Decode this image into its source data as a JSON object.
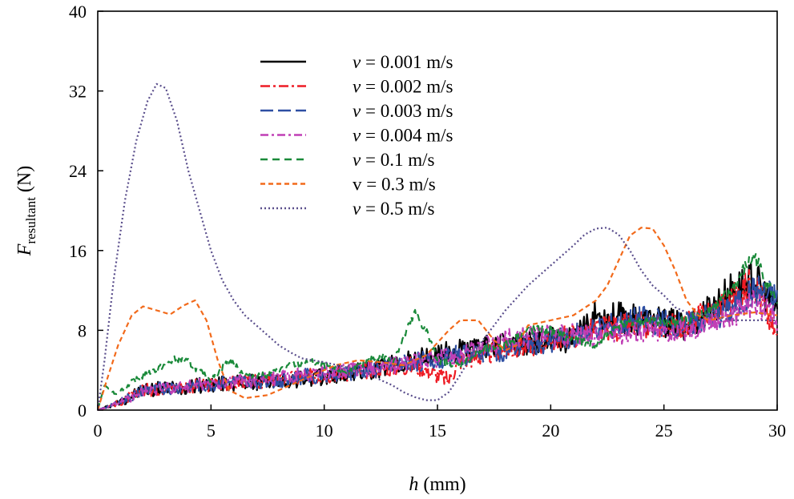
{
  "chart_data": {
    "type": "line",
    "xlabel": {
      "var": "h",
      "unit": "(mm)"
    },
    "ylabel": {
      "var": "F",
      "sub": "resultant",
      "unit": "(N)"
    },
    "xlim": [
      0,
      30
    ],
    "ylim": [
      0,
      40
    ],
    "xticks": [
      0,
      5,
      10,
      15,
      20,
      25,
      30
    ],
    "yticks": [
      0,
      8,
      16,
      24,
      32,
      40
    ],
    "grid": false,
    "legend_position": "top-center",
    "series": [
      {
        "name": "v = 0.001 m/s",
        "var": "v",
        "label_rest": " = 0.001 m/s",
        "italic": true,
        "color": "#000000",
        "dash": "",
        "width": 2.2,
        "noise": 1.2,
        "points": [
          [
            0,
            0
          ],
          [
            1,
            0.8
          ],
          [
            2,
            2
          ],
          [
            4,
            2.4
          ],
          [
            6,
            2.7
          ],
          [
            8,
            2.9
          ],
          [
            10,
            3.3
          ],
          [
            12,
            4
          ],
          [
            14,
            5
          ],
          [
            16,
            6
          ],
          [
            18,
            6.5
          ],
          [
            20,
            7
          ],
          [
            21,
            7
          ],
          [
            22,
            9.5
          ],
          [
            24,
            9
          ],
          [
            26,
            8.5
          ],
          [
            27,
            10
          ],
          [
            28,
            12
          ],
          [
            29,
            13
          ],
          [
            30,
            10
          ]
        ]
      },
      {
        "name": "v = 0.002 m/s",
        "var": "v",
        "label_rest": " = 0.002 m/s",
        "italic": true,
        "color": "#ee1c25",
        "dash": "12,4,3,4",
        "width": 2.2,
        "noise": 1.1,
        "points": [
          [
            0,
            0
          ],
          [
            1,
            0.8
          ],
          [
            2,
            2
          ],
          [
            4,
            2.4
          ],
          [
            6,
            2.7
          ],
          [
            8,
            3
          ],
          [
            10,
            3.5
          ],
          [
            12,
            4
          ],
          [
            14,
            4.5
          ],
          [
            15.5,
            3
          ],
          [
            16,
            5
          ],
          [
            18,
            6
          ],
          [
            20,
            7
          ],
          [
            22,
            8
          ],
          [
            24,
            8.5
          ],
          [
            26,
            8.5
          ],
          [
            28,
            11
          ],
          [
            29,
            13
          ],
          [
            30,
            7
          ]
        ]
      },
      {
        "name": "v = 0.003 m/s",
        "var": "v",
        "label_rest": " = 0.003 m/s",
        "italic": true,
        "color": "#2e4fa3",
        "dash": "16,6",
        "width": 2.2,
        "noise": 1.1,
        "points": [
          [
            0,
            0
          ],
          [
            1,
            0.8
          ],
          [
            2,
            2
          ],
          [
            4,
            2.4
          ],
          [
            6,
            2.8
          ],
          [
            8,
            3
          ],
          [
            10,
            3.6
          ],
          [
            12,
            4
          ],
          [
            14,
            4.8
          ],
          [
            16,
            5.5
          ],
          [
            18,
            6
          ],
          [
            20,
            7
          ],
          [
            22,
            8
          ],
          [
            24,
            9
          ],
          [
            26,
            8.5
          ],
          [
            28,
            10
          ],
          [
            29,
            12
          ],
          [
            30,
            11
          ]
        ]
      },
      {
        "name": "v = 0.004 m/s",
        "var": "v",
        "label_rest": " = 0.004 m/s",
        "italic": true,
        "color": "#c03fb5",
        "dash": "10,4,3,4",
        "width": 2.2,
        "noise": 1.0,
        "points": [
          [
            0,
            0
          ],
          [
            1,
            0.8
          ],
          [
            2,
            2
          ],
          [
            4,
            2.4
          ],
          [
            6,
            2.8
          ],
          [
            8,
            3.2
          ],
          [
            10,
            3.8
          ],
          [
            12,
            4.2
          ],
          [
            14,
            4.8
          ],
          [
            16,
            5.5
          ],
          [
            18,
            7
          ],
          [
            20,
            7.5
          ],
          [
            22,
            7.5
          ],
          [
            24,
            8
          ],
          [
            26,
            8
          ],
          [
            28,
            9.5
          ],
          [
            29,
            11
          ],
          [
            30,
            9
          ]
        ]
      },
      {
        "name": "v = 0.1 m/s",
        "var": "v",
        "label_rest": " = 0.1 m/s",
        "italic": true,
        "color": "#1a8a3a",
        "dash": "9,6",
        "width": 2.2,
        "noise": 0.4,
        "points": [
          [
            0,
            0
          ],
          [
            0.3,
            2.5
          ],
          [
            0.8,
            1.6
          ],
          [
            1.5,
            2.8
          ],
          [
            2.5,
            4
          ],
          [
            3.5,
            5.2
          ],
          [
            4,
            4.8
          ],
          [
            5,
            3
          ],
          [
            5.8,
            5
          ],
          [
            6.5,
            3.5
          ],
          [
            7.5,
            3.5
          ],
          [
            8.5,
            4.5
          ],
          [
            9.5,
            4.8
          ],
          [
            11,
            3.8
          ],
          [
            12.5,
            5.5
          ],
          [
            13,
            4.8
          ],
          [
            14,
            9.7
          ],
          [
            14.5,
            8
          ],
          [
            15,
            5
          ],
          [
            16,
            4.5
          ],
          [
            17,
            6
          ],
          [
            18,
            6.5
          ],
          [
            19,
            8
          ],
          [
            20,
            8
          ],
          [
            21,
            7
          ],
          [
            22,
            6.5
          ],
          [
            23,
            8.5
          ],
          [
            24,
            9
          ],
          [
            25,
            8.8
          ],
          [
            26,
            9
          ],
          [
            27,
            10
          ],
          [
            28,
            12
          ],
          [
            28.5,
            14
          ],
          [
            29,
            15.5
          ],
          [
            29.5,
            13
          ],
          [
            30,
            11
          ]
        ]
      },
      {
        "name": "v = 0.3 m/s",
        "var": "",
        "label_rest": "v = 0.3 m/s",
        "italic": false,
        "color": "#f26a1b",
        "dash": "6,4",
        "width": 2.2,
        "noise": 0,
        "points": [
          [
            0,
            0
          ],
          [
            0.4,
            3
          ],
          [
            0.9,
            6.5
          ],
          [
            1.5,
            9.5
          ],
          [
            2,
            10.4
          ],
          [
            2.6,
            10
          ],
          [
            3.2,
            9.6
          ],
          [
            3.8,
            10.5
          ],
          [
            4.3,
            11
          ],
          [
            4.8,
            9
          ],
          [
            5.3,
            5
          ],
          [
            5.8,
            2
          ],
          [
            6.5,
            1.2
          ],
          [
            7.5,
            1.5
          ],
          [
            8.5,
            2.5
          ],
          [
            9.5,
            3.5
          ],
          [
            10.5,
            4.5
          ],
          [
            11.5,
            5
          ],
          [
            12.5,
            4.8
          ],
          [
            13.5,
            4.5
          ],
          [
            14.5,
            5.5
          ],
          [
            15.5,
            8
          ],
          [
            16,
            9
          ],
          [
            16.8,
            9
          ],
          [
            17.5,
            7
          ],
          [
            18,
            6
          ],
          [
            18.5,
            6.5
          ],
          [
            19,
            8.5
          ],
          [
            20,
            9
          ],
          [
            21,
            9.5
          ],
          [
            22,
            11
          ],
          [
            22.5,
            12.5
          ],
          [
            23,
            15
          ],
          [
            23.5,
            17.5
          ],
          [
            24,
            18.3
          ],
          [
            24.5,
            18.2
          ],
          [
            25,
            16.5
          ],
          [
            25.5,
            14
          ],
          [
            26,
            11
          ],
          [
            26.5,
            9.5
          ],
          [
            27,
            9
          ],
          [
            28,
            9.5
          ],
          [
            29,
            9.8
          ],
          [
            30,
            9.5
          ]
        ]
      },
      {
        "name": "v = 0.5 m/s",
        "var": "v",
        "label_rest": " = 0.5 m/s",
        "italic": true,
        "color": "#5a4e8c",
        "dash": "2,3",
        "width": 2.2,
        "noise": 0,
        "points": [
          [
            0,
            0
          ],
          [
            0.3,
            5
          ],
          [
            0.7,
            13
          ],
          [
            1.2,
            21
          ],
          [
            1.7,
            27
          ],
          [
            2.2,
            31
          ],
          [
            2.6,
            32.7
          ],
          [
            3,
            32.3
          ],
          [
            3.5,
            29
          ],
          [
            4,
            24
          ],
          [
            4.5,
            20
          ],
          [
            5,
            16
          ],
          [
            5.5,
            13
          ],
          [
            6,
            11
          ],
          [
            6.5,
            9.5
          ],
          [
            7,
            8.5
          ],
          [
            7.5,
            7.5
          ],
          [
            8,
            6.5
          ],
          [
            8.5,
            5.8
          ],
          [
            9,
            5.2
          ],
          [
            10,
            4.8
          ],
          [
            11,
            4.3
          ],
          [
            12,
            3.6
          ],
          [
            12.5,
            3
          ],
          [
            13,
            2.5
          ],
          [
            13.5,
            1.8
          ],
          [
            14,
            1.3
          ],
          [
            14.5,
            1
          ],
          [
            15,
            1
          ],
          [
            15.5,
            1.8
          ],
          [
            16,
            3.5
          ],
          [
            16.5,
            5.5
          ],
          [
            17,
            7
          ],
          [
            17.5,
            8.5
          ],
          [
            18,
            10
          ],
          [
            19,
            12.5
          ],
          [
            20,
            14.5
          ],
          [
            21,
            16.5
          ],
          [
            21.5,
            17.6
          ],
          [
            22,
            18.2
          ],
          [
            22.5,
            18.3
          ],
          [
            23,
            17.6
          ],
          [
            23.5,
            16
          ],
          [
            24,
            14
          ],
          [
            24.5,
            12.5
          ],
          [
            25,
            11.5
          ],
          [
            25.5,
            10.3
          ],
          [
            26,
            9.8
          ],
          [
            27,
            9.5
          ],
          [
            28,
            9
          ],
          [
            29,
            9
          ],
          [
            30,
            9
          ]
        ]
      }
    ]
  }
}
